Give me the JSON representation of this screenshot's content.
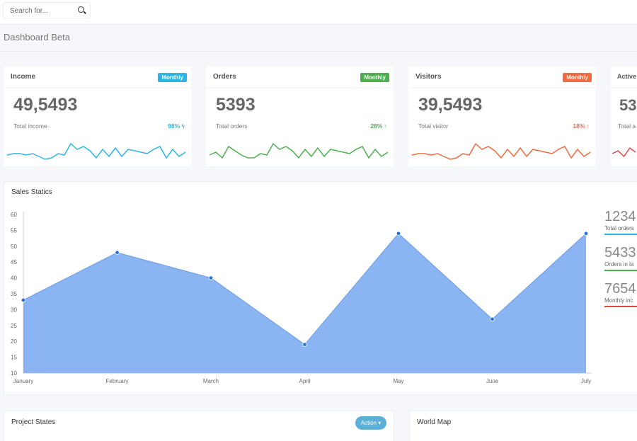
{
  "search": {
    "placeholder": "Search for...",
    "icon": "search-icon"
  },
  "page": {
    "title": "Dashboard Beta"
  },
  "cards": [
    {
      "title": "Income",
      "badge": "Monthly",
      "value": "49,5493",
      "label": "Total income",
      "pct": "98%",
      "pct_icon": "bolt-icon",
      "color": "#29b6e6",
      "spark": [
        5,
        6,
        6,
        5,
        6,
        4,
        2,
        3,
        6,
        5,
        13,
        9,
        11,
        8,
        3,
        9,
        4,
        10,
        4,
        9,
        8,
        7,
        6,
        9,
        11,
        3,
        9,
        4,
        7
      ]
    },
    {
      "title": "Orders",
      "badge": "Monthly",
      "value": "5393",
      "label": "Total orders",
      "pct": "28%",
      "pct_icon": "arrow-up-icon",
      "color": "#4caf50",
      "spark": [
        5,
        7,
        3,
        11,
        8,
        5,
        3,
        3,
        6,
        5,
        13,
        9,
        11,
        8,
        3,
        9,
        4,
        10,
        4,
        9,
        8,
        7,
        6,
        9,
        11,
        3,
        9,
        4,
        7
      ]
    },
    {
      "title": "Visitors",
      "badge": "Monthly",
      "value": "39,5493",
      "label": "Total visitor",
      "pct": "18%",
      "pct_icon": "arrow-up-icon",
      "color": "#f26a3e",
      "spark": [
        5,
        6,
        6,
        5,
        6,
        4,
        2,
        3,
        6,
        5,
        13,
        9,
        11,
        8,
        3,
        9,
        4,
        10,
        4,
        9,
        8,
        7,
        6,
        9,
        11,
        3,
        9,
        4,
        7
      ]
    },
    {
      "title": "Active",
      "badge": "",
      "value": "53",
      "label": "Total a",
      "pct": "",
      "pct_icon": "",
      "color": "#e04848",
      "spark": [
        6,
        8,
        4,
        10,
        7
      ]
    }
  ],
  "sales": {
    "title": "Sales Statics",
    "stats": [
      {
        "value": "1234",
        "label": "Total orders",
        "color": "#29b6e6"
      },
      {
        "value": "5433",
        "label": "Orders in la",
        "color": "#4caf50"
      },
      {
        "value": "7654",
        "label": "Monthly inc",
        "color": "#e04848"
      }
    ]
  },
  "chart_data": {
    "type": "area",
    "categories": [
      "January",
      "February",
      "March",
      "April",
      "May",
      "June",
      "July"
    ],
    "values": [
      33,
      48,
      40,
      19,
      54,
      27,
      54
    ],
    "ylim": [
      10,
      60
    ],
    "yticks": [
      10,
      15,
      20,
      25,
      30,
      35,
      40,
      45,
      50,
      55,
      60
    ],
    "fill": "#8ab4f2",
    "line": "#6a9be8",
    "point": "#2a6fd6",
    "grid": false
  },
  "panels": {
    "project": {
      "title": "Project States",
      "action": "Action"
    },
    "map": {
      "title": "World Map"
    }
  }
}
